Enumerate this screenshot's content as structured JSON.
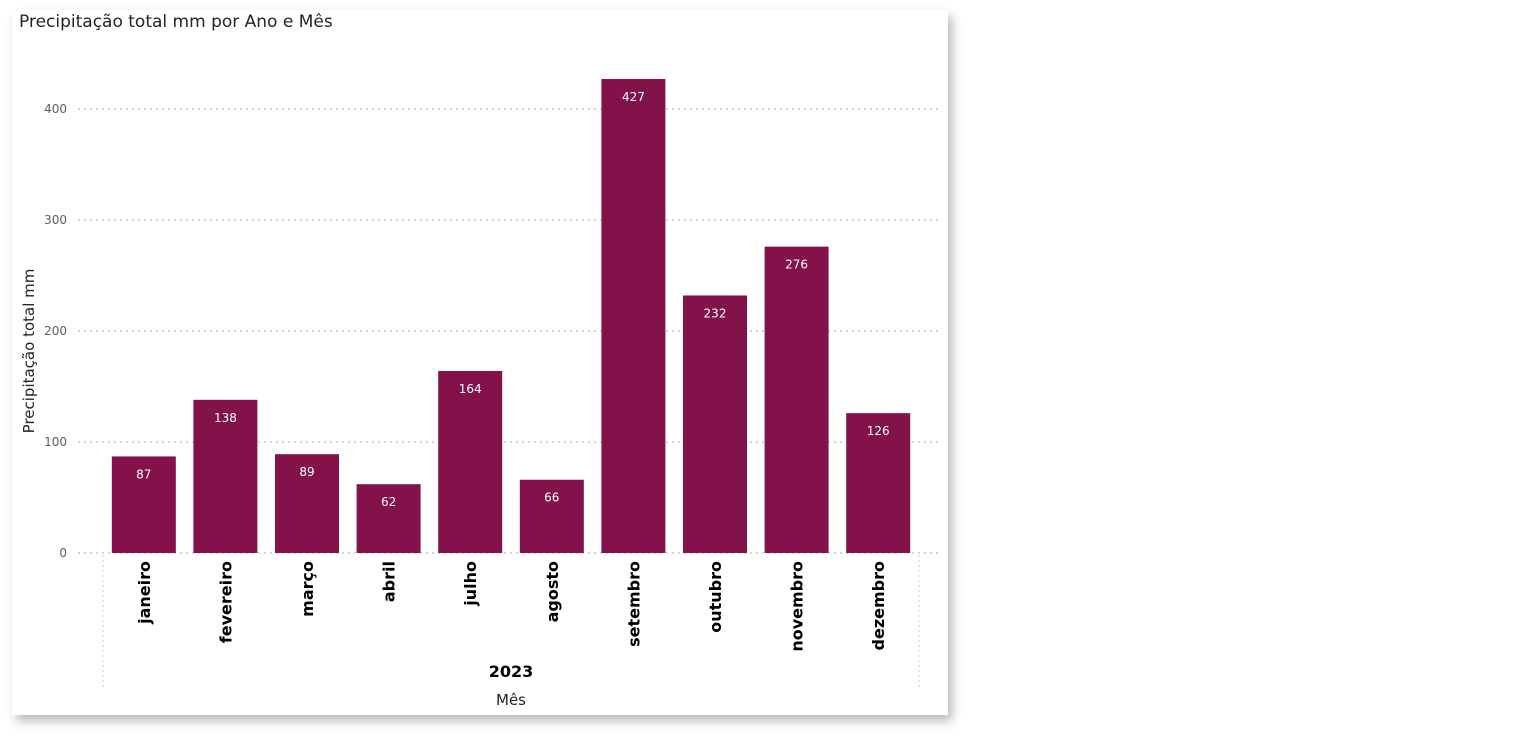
{
  "chart_data": {
    "type": "bar",
    "title": "Precipitação total mm por Ano e Mês",
    "xlabel": "Mês",
    "ylabel": "Precipitação total mm",
    "group_label": "2023",
    "categories": [
      "janeiro",
      "fevereiro",
      "março",
      "abril",
      "julho",
      "agosto",
      "setembro",
      "outubro",
      "novembro",
      "dezembro"
    ],
    "values": [
      87,
      138,
      89,
      62,
      164,
      66,
      427,
      232,
      276,
      126
    ],
    "yticks": [
      0,
      100,
      200,
      300,
      400
    ],
    "ylim": [
      0,
      445
    ],
    "grid": true,
    "bar_color": "#821249",
    "data_labels": true
  }
}
